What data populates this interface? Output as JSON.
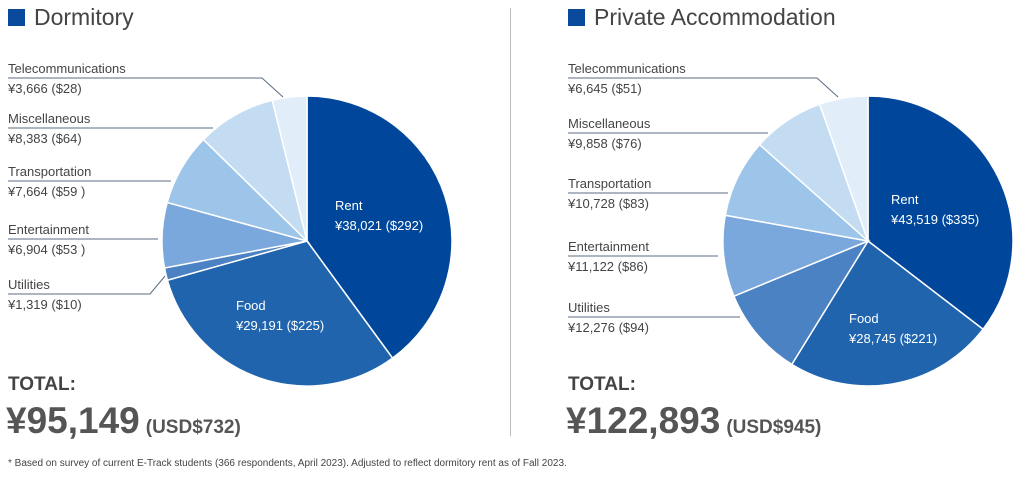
{
  "colors": {
    "accent": "#0a4a9c",
    "Rent": "#00479b",
    "Food": "#1f64ad",
    "Utilities": "#4b82c3",
    "Entertainment": "#7ba8dc",
    "Transportation": "#9dc5ea",
    "Miscellaneous": "#c3dcf2",
    "Telecommunications": "#e1eefa"
  },
  "chart_data": [
    {
      "type": "pie",
      "title": "Dormitory",
      "start": "12 o'clock, clockwise",
      "slices": [
        {
          "label": "Rent",
          "value": 38021,
          "text": "¥38,021 ($292)"
        },
        {
          "label": "Food",
          "value": 29191,
          "text": "¥29,191 ($225)"
        },
        {
          "label": "Utilities",
          "value": 1319,
          "text": "¥1,319 ($10)"
        },
        {
          "label": "Entertainment",
          "value": 6904,
          "text": "¥6,904 ($53 )"
        },
        {
          "label": "Transportation",
          "value": 7664,
          "text": "¥7,664 ($59 )"
        },
        {
          "label": "Miscellaneous",
          "value": 8383,
          "text": "¥8,383 ($64)"
        },
        {
          "label": "Telecommunications",
          "value": 3666,
          "text": "¥3,666 ($28)"
        }
      ],
      "total_label": "TOTAL:",
      "total": "¥95,149",
      "total_usd": "(USD$732)"
    },
    {
      "type": "pie",
      "title": "Private Accommodation",
      "start": "12 o'clock, clockwise",
      "slices": [
        {
          "label": "Rent",
          "value": 43519,
          "text": "¥43,519 ($335)"
        },
        {
          "label": "Food",
          "value": 28745,
          "text": "¥28,745 ($221)"
        },
        {
          "label": "Utilities",
          "value": 12276,
          "text": "¥12,276 ($94)"
        },
        {
          "label": "Entertainment",
          "value": 11122,
          "text": "¥11,122 ($86)"
        },
        {
          "label": "Transportation",
          "value": 10728,
          "text": "¥10,728 ($83)"
        },
        {
          "label": "Miscellaneous",
          "value": 9858,
          "text": "¥9,858 ($76)"
        },
        {
          "label": "Telecommunications",
          "value": 6645,
          "text": "¥6,645 ($51)"
        }
      ],
      "total_label": "TOTAL:",
      "total": "¥122,893",
      "total_usd": "(USD$945)"
    }
  ],
  "footnote": "* Based on survey of current E-Track students (366 respondents, April 2023). Adjusted to reflect dormitory rent as of Fall 2023."
}
